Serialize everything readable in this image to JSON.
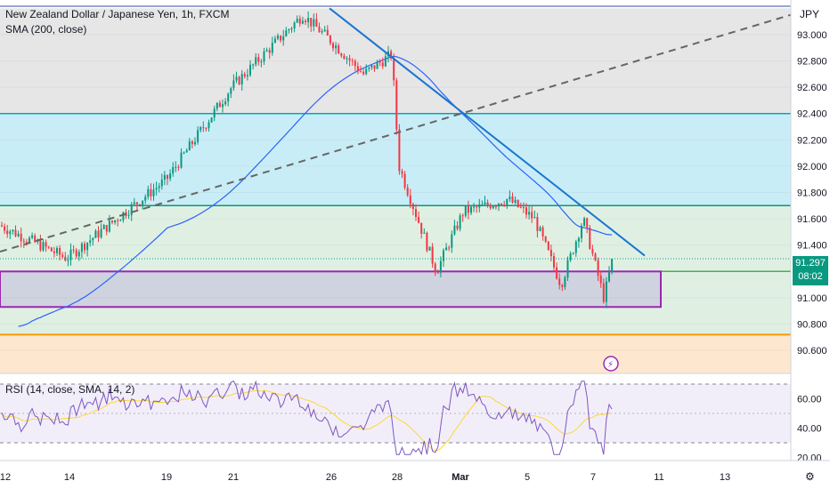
{
  "header": {
    "title": "New Zealand Dollar / Japanese Yen, 1h, FXCM",
    "sma_label": "SMA (200, close)",
    "currency": "JPY"
  },
  "indicator": {
    "label": "RSI (14, close, SMA, 14, 2)"
  },
  "last_price": {
    "value": "91.297",
    "countdown": "08:02"
  },
  "colors": {
    "up": "#089981",
    "down": "#f23645",
    "sma": "#2962ff",
    "rsi": "#7e57c2",
    "rsi_ma": "#fdd835",
    "zone_top": "#e6e6e6",
    "zone_cyan": "#c9edf6",
    "zone_green": "#dff0e3",
    "zone_orange": "#fde8cf",
    "box": "#9c27b0",
    "orange_line": "#ff9800"
  },
  "chart_data": [
    {
      "type": "candlestick",
      "title": "New Zealand Dollar / Japanese Yen, 1h, FXCM",
      "x_tick_labels": [
        "12",
        "14",
        "19",
        "21",
        "26",
        "28",
        "Mar",
        "5",
        "7",
        "11",
        "13"
      ],
      "y_tick_labels": [
        "93.000",
        "92.800",
        "92.600",
        "92.400",
        "92.200",
        "92.000",
        "91.800",
        "91.600",
        "91.400",
        "91.000",
        "90.800",
        "90.600"
      ],
      "ylim": [
        90.45,
        93.2
      ],
      "key_points": [
        {
          "x": "12",
          "price": 91.55
        },
        {
          "x": "14",
          "price": 91.3
        },
        {
          "x": "19",
          "price": 91.9
        },
        {
          "x": "21",
          "price": 92.6
        },
        {
          "x": "24",
          "price": 93.15
        },
        {
          "x": "26",
          "price": 92.95
        },
        {
          "x": "27",
          "price": 92.7
        },
        {
          "x": "28",
          "price": 92.85
        },
        {
          "x": "28",
          "price": 92.0
        },
        {
          "x": "29",
          "price": 91.2
        },
        {
          "x": "Mar",
          "price": 91.65
        },
        {
          "x": "4",
          "price": 91.75
        },
        {
          "x": "5",
          "price": 91.6
        },
        {
          "x": "6",
          "price": 91.1
        },
        {
          "x": "6",
          "price": 91.6
        },
        {
          "x": "7",
          "price": 91.0
        },
        {
          "x": "7",
          "price": 91.297
        }
      ],
      "last_price": 91.297,
      "levels": [
        91.7,
        91.2,
        92.4,
        90.72
      ],
      "zone_box": [
        90.93,
        91.2
      ]
    },
    {
      "type": "line",
      "title": "RSI (14, close, SMA, 14, 2)",
      "y_tick_labels": [
        "60.00",
        "40.00",
        "20.00"
      ],
      "ylim": [
        15,
        75
      ],
      "bands": [
        30,
        70
      ],
      "last_value": 53
    }
  ]
}
